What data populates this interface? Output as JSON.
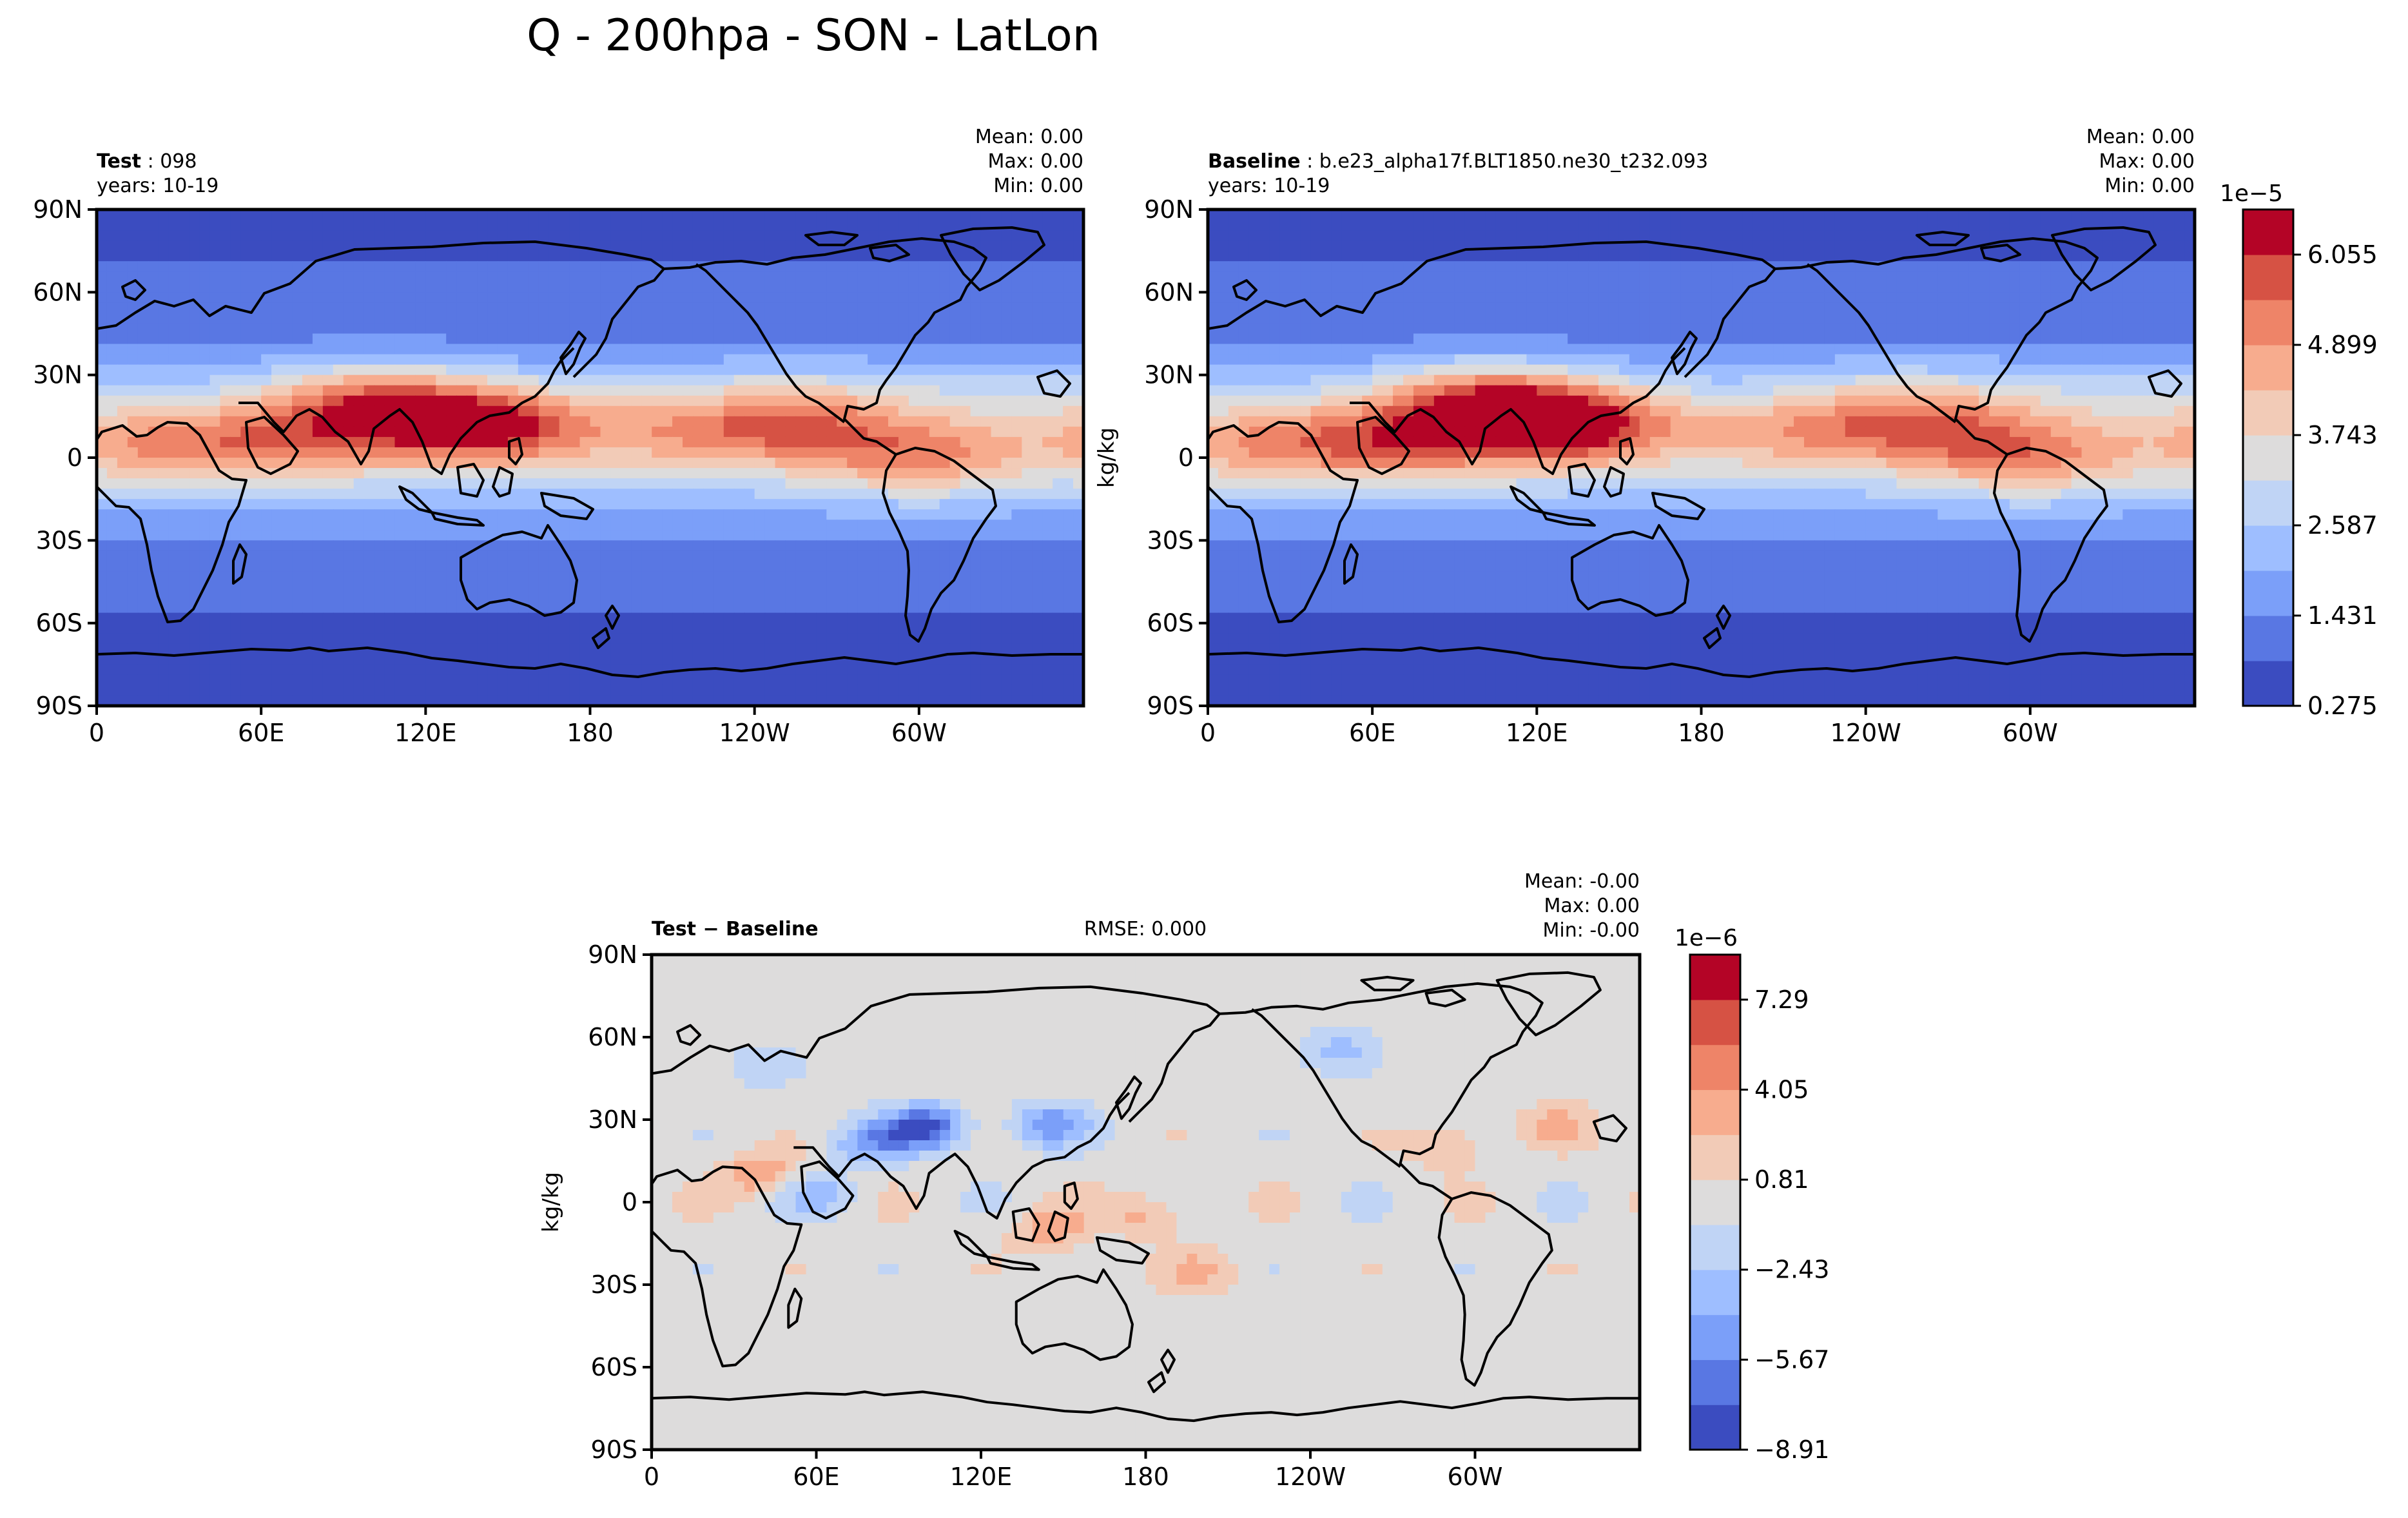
{
  "figure": {
    "title": "Q - 200hpa - SON - LatLon"
  },
  "chart_data": [
    {
      "type": "heatmap",
      "panel": "test",
      "title_bold": "Test",
      "title_rest": " : 098",
      "years": "years: 10-19",
      "stats": {
        "mean": "Mean:  0.00",
        "max": "Max:  0.00",
        "min": "Min:  0.00"
      },
      "ylabel": "",
      "xticks": [
        "0",
        "60E",
        "120E",
        "180",
        "120W",
        "60W"
      ],
      "yticks": [
        "90N",
        "60N",
        "30N",
        "0",
        "30S",
        "60S",
        "90S"
      ],
      "xlim": [
        0,
        360
      ],
      "ylim": [
        -90,
        90
      ],
      "units": "kg/kg",
      "field_scale": 1e-05,
      "hotspots": [
        {
          "lon": 140,
          "lat": 12,
          "value": 6.4
        },
        {
          "lon": 100,
          "lat": 20,
          "value": 5.6
        },
        {
          "lon": 70,
          "lat": 5,
          "value": 4.6
        },
        {
          "lon": 22,
          "lat": 5,
          "value": 4.6
        },
        {
          "lon": 300,
          "lat": 0,
          "value": 4.9
        },
        {
          "lon": 255,
          "lat": 12,
          "value": 5.0
        },
        {
          "lon": 210,
          "lat": 10,
          "value": 4.2
        }
      ]
    },
    {
      "type": "heatmap",
      "panel": "baseline",
      "title_bold": "Baseline",
      "title_rest": " : b.e23_alpha17f.BLT1850.ne30_t232.093",
      "years": "years: 10-19",
      "stats": {
        "mean": "Mean:  0.00",
        "max": "Max:  0.00",
        "min": "Min:  0.00"
      },
      "ylabel": "kg/kg",
      "xticks": [
        "0",
        "60E",
        "120E",
        "180",
        "120W",
        "60W"
      ],
      "yticks": [
        "90N",
        "60N",
        "30N",
        "0",
        "30S",
        "60S",
        "90S"
      ],
      "xlim": [
        0,
        360
      ],
      "ylim": [
        -90,
        90
      ],
      "colorbar": {
        "exponent": "1e−5",
        "ticks": [
          "0.275",
          "1.431",
          "2.587",
          "3.743",
          "4.899",
          "6.055"
        ],
        "levels": [
          0.275,
          0.853,
          1.431,
          2.009,
          2.587,
          3.165,
          3.743,
          4.321,
          4.899,
          5.477,
          6.055,
          6.633
        ]
      },
      "hotspots": [
        {
          "lon": 130,
          "lat": 12,
          "value": 6.5
        },
        {
          "lon": 100,
          "lat": 20,
          "value": 5.9
        },
        {
          "lon": 70,
          "lat": 5,
          "value": 4.9
        },
        {
          "lon": 22,
          "lat": 5,
          "value": 4.6
        },
        {
          "lon": 300,
          "lat": 0,
          "value": 4.9
        },
        {
          "lon": 260,
          "lat": 12,
          "value": 5.1
        },
        {
          "lon": 210,
          "lat": 10,
          "value": 4.3
        }
      ]
    },
    {
      "type": "heatmap",
      "panel": "difference",
      "title_bold": "Test − Baseline",
      "rmse": "RMSE: 0.000",
      "stats": {
        "mean": "Mean: -0.00",
        "max": "Max:  0.00",
        "min": "Min: -0.00"
      },
      "ylabel": "kg/kg",
      "xticks": [
        "0",
        "60E",
        "120E",
        "180",
        "120W",
        "60W"
      ],
      "yticks": [
        "90N",
        "60N",
        "30N",
        "0",
        "30S",
        "60S",
        "90S"
      ],
      "xlim": [
        0,
        360
      ],
      "ylim": [
        -90,
        90
      ],
      "colorbar": {
        "exponent": "1e−6",
        "ticks": [
          "−8.91",
          "−5.67",
          "−2.43",
          "0.81",
          "4.05",
          "7.29"
        ],
        "levels": [
          -8.91,
          -7.29,
          -5.67,
          -4.05,
          -2.43,
          -0.81,
          0.81,
          2.43,
          4.05,
          5.67,
          7.29,
          8.91
        ]
      },
      "anomalies": [
        {
          "lon": 100,
          "lat": 27,
          "value": -8.0
        },
        {
          "lon": 80,
          "lat": 22,
          "value": -4.5
        },
        {
          "lon": 145,
          "lat": 28,
          "value": -5.0
        },
        {
          "lon": 60,
          "lat": 3,
          "value": -3.0
        },
        {
          "lon": 40,
          "lat": 10,
          "value": 4.0
        },
        {
          "lon": 145,
          "lat": -10,
          "value": 3.5
        },
        {
          "lon": 180,
          "lat": -5,
          "value": 3.0
        },
        {
          "lon": 200,
          "lat": -25,
          "value": 2.5
        },
        {
          "lon": 290,
          "lat": 20,
          "value": 2.5
        },
        {
          "lon": 330,
          "lat": 28,
          "value": 2.5
        },
        {
          "lon": 250,
          "lat": 55,
          "value": -3.0
        },
        {
          "lon": 40,
          "lat": 50,
          "value": -2.0
        }
      ]
    }
  ]
}
